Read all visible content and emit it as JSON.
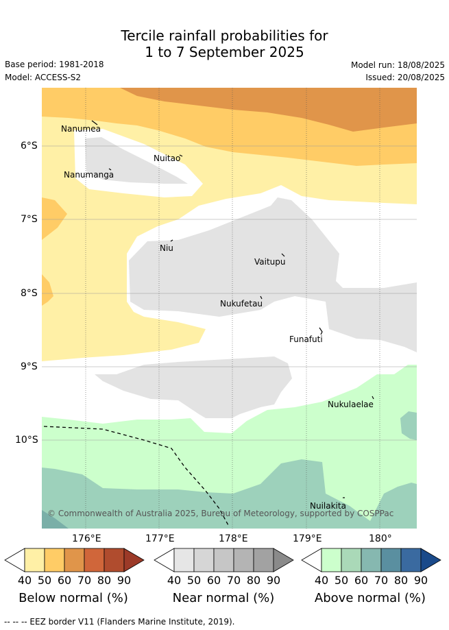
{
  "header": {
    "title_line1": "Tercile rainfall probabilities for",
    "title_line2": "1 to 7 September 2025",
    "base_period": "Base period: 1981-2018",
    "model": "Model: ACCESS-S2",
    "model_run": "Model run: 18/08/2025",
    "issued": "Issued: 20/08/2025"
  },
  "map": {
    "lat_labels": [
      "6°S",
      "7°S",
      "8°S",
      "9°S",
      "10°S"
    ],
    "lon_labels": [
      "176°E",
      "177°E",
      "178°E",
      "179°E",
      "180°"
    ],
    "places": [
      "Nanumea",
      "Nuitao",
      "Nanumanga",
      "Niu",
      "Vaitupu",
      "Nukufetau",
      "Funafuti",
      "Nukulaelae",
      "Nuilakita"
    ],
    "copyright": "© Commonwealth of Australia 2025, Bureau of Meteorology, supported by COSPPac"
  },
  "legend": {
    "ticks": [
      "40",
      "50",
      "60",
      "70",
      "80",
      "90"
    ],
    "below_label": "Below normal (%)",
    "near_label": "Near normal (%)",
    "above_label": "Above normal (%)",
    "below_colors": [
      "#fff0a6",
      "#ffcc66",
      "#e0954a",
      "#d0663a",
      "#b04c2e",
      "#9c3a28"
    ],
    "near_colors": [
      "#e6e6e6",
      "#d6d6d6",
      "#c6c6c6",
      "#b4b4b4",
      "#a2a2a2",
      "#8a8a8a"
    ],
    "above_colors": [
      "#ccffcc",
      "#aad9b8",
      "#86b8b0",
      "#5a8fa0",
      "#3a6aa0",
      "#1a4a8a"
    ]
  },
  "footnote": "-- -- -- EEZ border V11 (Flanders Marine Institute, 2019)."
}
